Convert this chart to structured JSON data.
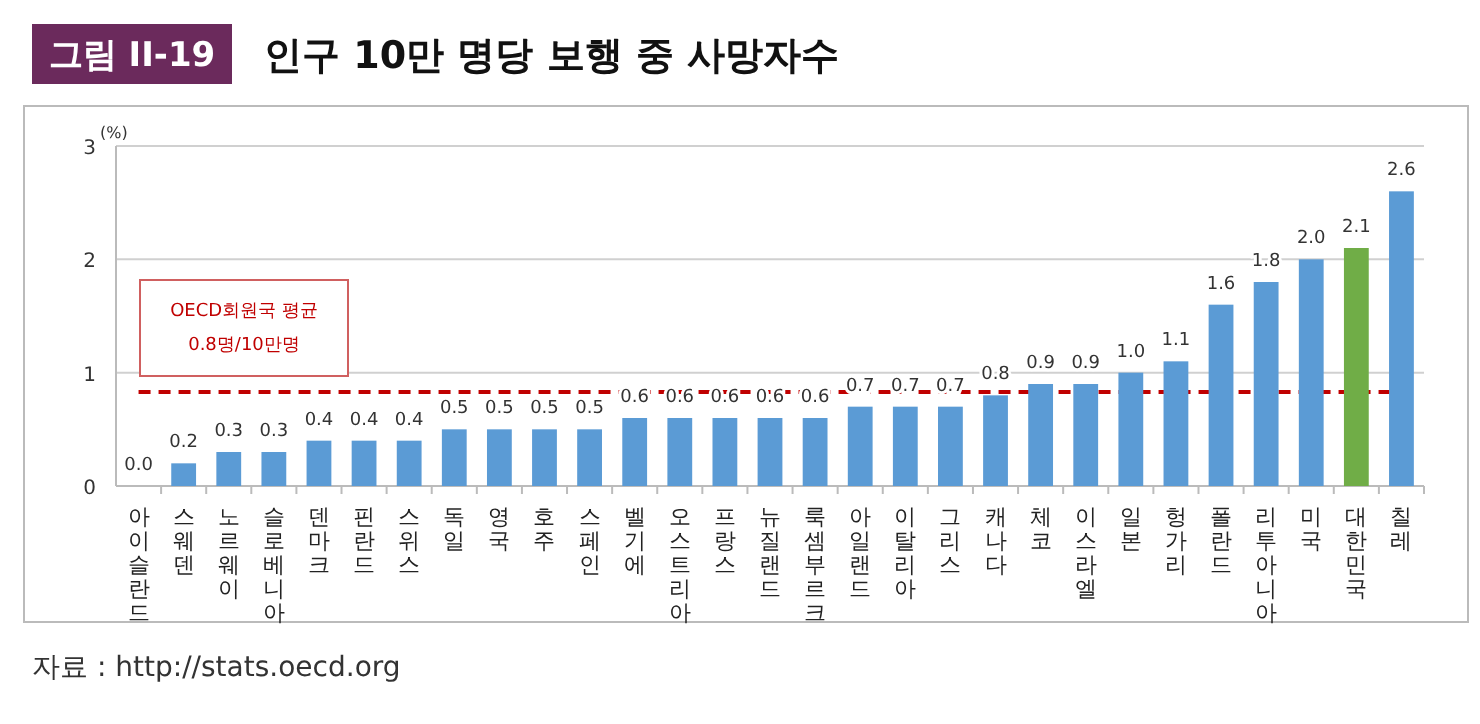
{
  "chart_data": {
    "type": "bar",
    "title": "인구 10만 명당 보행 중 사망자수",
    "subtitle": "그림 II-19",
    "ylabel": "(%)",
    "categories": [
      "아이슬란드",
      "스웨덴",
      "노르웨이",
      "슬로베니아",
      "덴마크",
      "핀란드",
      "스위스",
      "독일",
      "영국",
      "호주",
      "스페인",
      "벨기에",
      "오스트리아",
      "프랑스",
      "뉴질랜드",
      "룩셈부르크",
      "아일랜드",
      "이탈리아",
      "그리스",
      "캐나다",
      "체코",
      "이스라엘",
      "일본",
      "헝가리",
      "폴란드",
      "리투아니아",
      "미국",
      "대한민국",
      "칠레"
    ],
    "values": [
      0.0,
      0.2,
      0.3,
      0.3,
      0.4,
      0.4,
      0.4,
      0.5,
      0.5,
      0.5,
      0.5,
      0.6,
      0.6,
      0.6,
      0.6,
      0.6,
      0.7,
      0.7,
      0.7,
      0.8,
      0.9,
      0.9,
      1.0,
      1.1,
      1.6,
      1.8,
      2.0,
      2.1,
      2.6
    ],
    "colors": [
      "#5b9bd5",
      "#5b9bd5",
      "#5b9bd5",
      "#5b9bd5",
      "#5b9bd5",
      "#5b9bd5",
      "#5b9bd5",
      "#5b9bd5",
      "#5b9bd5",
      "#5b9bd5",
      "#5b9bd5",
      "#5b9bd5",
      "#5b9bd5",
      "#5b9bd5",
      "#5b9bd5",
      "#5b9bd5",
      "#5b9bd5",
      "#5b9bd5",
      "#5b9bd5",
      "#5b9bd5",
      "#5b9bd5",
      "#5b9bd5",
      "#5b9bd5",
      "#5b9bd5",
      "#5b9bd5",
      "#5b9bd5",
      "#5b9bd5",
      "#70ad47",
      "#5b9bd5"
    ],
    "value_labels": [
      "0.0",
      "0.2",
      "0.3",
      "0.3",
      "0.4",
      "0.4",
      "0.4",
      "0.5",
      "0.5",
      "0.5",
      "0.5",
      "0.6",
      "0.6",
      "0.6",
      "0.6",
      "0.6",
      "0.7",
      "0.7",
      "0.7",
      "0.8",
      "0.9",
      "0.9",
      "1.0",
      "1.1",
      "1.6",
      "1.8",
      "2.0",
      "2.1",
      "2.6"
    ],
    "ylim": [
      0,
      3
    ],
    "yticks": [
      0,
      1,
      2,
      3
    ],
    "grid": "y",
    "ref_lines": [
      {
        "axis": "y",
        "value": 0.83,
        "label": "OECD회원국 평균\n0.8명/10만명",
        "color": "#c00000",
        "line_style": "dashed"
      }
    ],
    "annotations": [
      "자료 : http://stats.oecd.org"
    ]
  }
}
